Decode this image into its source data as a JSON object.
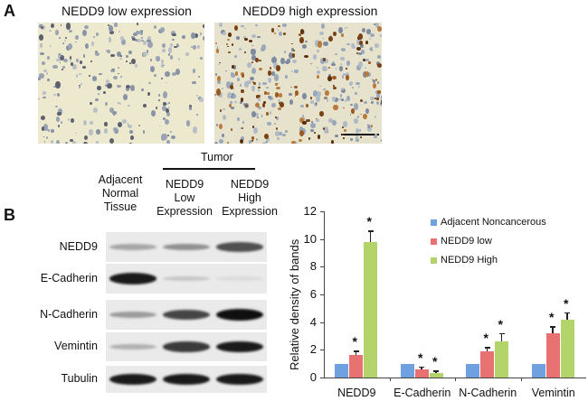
{
  "panel_a": {
    "label": "A",
    "images": [
      {
        "caption": "NEDD9 low expression"
      },
      {
        "caption": "NEDD9 high expression"
      }
    ]
  },
  "panel_b": {
    "label": "B",
    "tumor_header": "Tumor",
    "columns": [
      {
        "lines": [
          "Adjacent",
          "Normal",
          "Tissue"
        ]
      },
      {
        "lines": [
          "NEDD9",
          "Low",
          "Expression"
        ]
      },
      {
        "lines": [
          "NEDD9",
          "High",
          "Expression"
        ]
      }
    ],
    "blot_rows": [
      {
        "label": "NEDD9",
        "intensity": [
          0.3,
          0.4,
          0.7
        ]
      },
      {
        "label": "E-Cadherin",
        "intensity": [
          0.95,
          0.15,
          0.05
        ]
      },
      {
        "label": "N-Cadherin",
        "intensity": [
          0.35,
          0.75,
          1.0
        ]
      },
      {
        "label": "Vemintin",
        "intensity": [
          0.25,
          0.8,
          0.95
        ]
      },
      {
        "label": "Tubulin",
        "intensity": [
          0.95,
          0.95,
          0.95
        ]
      }
    ]
  },
  "chart_data": {
    "type": "bar",
    "title": "",
    "xlabel": "",
    "ylabel": "Relative density of bands",
    "ylim": [
      0,
      12
    ],
    "yticks": [
      0,
      2,
      4,
      6,
      8,
      10,
      12
    ],
    "categories": [
      "NEDD9",
      "E-Cadherin",
      "N-Cadherin",
      "Vemintin"
    ],
    "series": [
      {
        "name": "Adjacent Noncancerous",
        "color": "#6fa0e0",
        "values": [
          1.0,
          1.0,
          1.0,
          1.0
        ],
        "errors": [
          0,
          0,
          0,
          0
        ],
        "significant": [
          false,
          false,
          false,
          false
        ]
      },
      {
        "name": "NEDD9 low",
        "color": "#e87272",
        "values": [
          1.6,
          0.6,
          1.9,
          3.2
        ],
        "errors": [
          0.35,
          0.2,
          0.3,
          0.5
        ],
        "significant": [
          true,
          true,
          true,
          true
        ]
      },
      {
        "name": "NEDD9 High",
        "color": "#b2d46a",
        "values": [
          9.8,
          0.3,
          2.6,
          4.2
        ],
        "errors": [
          0.8,
          0.2,
          0.6,
          0.5
        ],
        "significant": [
          true,
          true,
          true,
          true
        ]
      }
    ],
    "annotation": "*",
    "legend_position": "upper right",
    "grid": false
  }
}
